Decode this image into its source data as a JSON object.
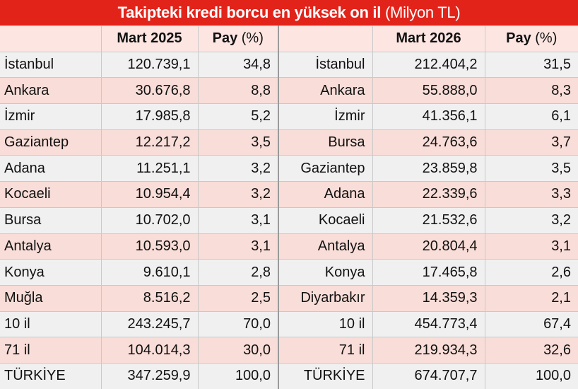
{
  "title": "Takipteki kredi borcu en yüksek on il",
  "unit": "(Milyon TL)",
  "headers": {
    "col1": "Mart 2025",
    "pay": "Pay",
    "pct": "(%)",
    "col2": "Mart 2026"
  },
  "rows": [
    {
      "left_name": "İstanbul",
      "left_value": "120.739,1",
      "left_share": "34,8",
      "right_name": "İstanbul",
      "right_value": "212.404,2",
      "right_share": "31,5"
    },
    {
      "left_name": "Ankara",
      "left_value": "30.676,8",
      "left_share": "8,8",
      "right_name": "Ankara",
      "right_value": "55.888,0",
      "right_share": "8,3"
    },
    {
      "left_name": "İzmir",
      "left_value": "17.985,8",
      "left_share": "5,2",
      "right_name": "İzmir",
      "right_value": "41.356,1",
      "right_share": "6,1"
    },
    {
      "left_name": "Gaziantep",
      "left_value": "12.217,2",
      "left_share": "3,5",
      "right_name": "Bursa",
      "right_value": "24.763,6",
      "right_share": "3,7"
    },
    {
      "left_name": "Adana",
      "left_value": "11.251,1",
      "left_share": "3,2",
      "right_name": "Gaziantep",
      "right_value": "23.859,8",
      "right_share": "3,5"
    },
    {
      "left_name": "Kocaeli",
      "left_value": "10.954,4",
      "left_share": "3,2",
      "right_name": "Adana",
      "right_value": "22.339,6",
      "right_share": "3,3"
    },
    {
      "left_name": "Bursa",
      "left_value": "10.702,0",
      "left_share": "3,1",
      "right_name": "Kocaeli",
      "right_value": "21.532,6",
      "right_share": "3,2"
    },
    {
      "left_name": "Antalya",
      "left_value": "10.593,0",
      "left_share": "3,1",
      "right_name": "Antalya",
      "right_value": "20.804,4",
      "right_share": "3,1"
    },
    {
      "left_name": "Konya",
      "left_value": "9.610,1",
      "left_share": "2,8",
      "right_name": "Konya",
      "right_value": "17.465,8",
      "right_share": "2,6"
    },
    {
      "left_name": "Muğla",
      "left_value": "8.516,2",
      "left_share": "2,5",
      "right_name": "Diyarbakır",
      "right_value": "14.359,3",
      "right_share": "2,1"
    },
    {
      "left_name": "10 il",
      "left_value": "243.245,7",
      "left_share": "70,0",
      "right_name": "10 il",
      "right_value": "454.773,4",
      "right_share": "67,4"
    },
    {
      "left_name": "71 il",
      "left_value": "104.014,3",
      "left_share": "30,0",
      "right_name": "71 il",
      "right_value": "219.934,3",
      "right_share": "32,6"
    },
    {
      "left_name": "TÜRKİYE",
      "left_value": "347.259,9",
      "left_share": "100,0",
      "right_name": "TÜRKİYE",
      "right_value": "674.707,7",
      "right_share": "100,0"
    }
  ]
}
